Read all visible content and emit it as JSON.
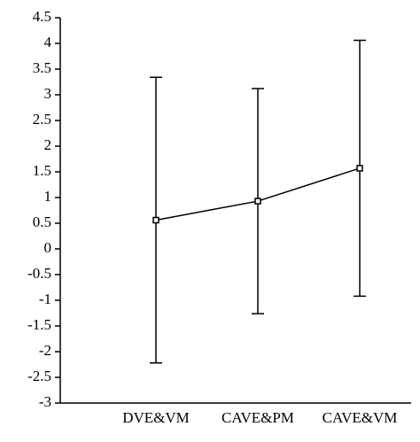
{
  "chart_data": {
    "type": "line",
    "categories": [
      "DVE&VM",
      "CAVE&PM",
      "CAVE&VM"
    ],
    "values": [
      0.56,
      0.93,
      1.57
    ],
    "errors": [
      2.78,
      2.19,
      2.49
    ],
    "color": "#000000",
    "ylim": [
      -3,
      4.5
    ],
    "yticks": [
      4.5,
      4,
      3.5,
      3,
      2.5,
      2,
      1.5,
      1,
      0.5,
      0,
      -0.5,
      -1,
      -1.5,
      -2,
      -2.5,
      -3
    ],
    "grid": false
  }
}
